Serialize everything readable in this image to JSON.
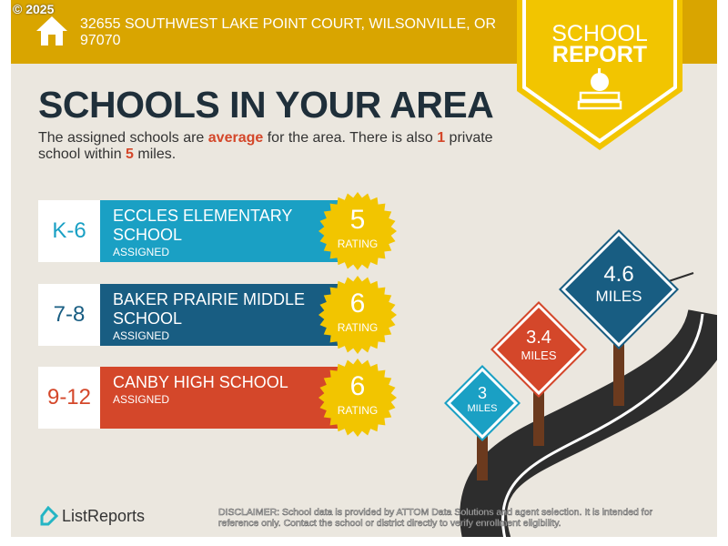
{
  "header": {
    "copyright": "© 2025",
    "address": "32655 SOUTHWEST LAKE POINT COURT, WILSONVILLE, OR 97070"
  },
  "badge": {
    "line1": "SCHOOL",
    "line2": "REPORT",
    "icon": "apple-books-icon"
  },
  "title": "SCHOOLS IN YOUR AREA",
  "summary": {
    "p1": "The assigned schools are ",
    "quality": "average",
    "p2": " for the area. There is also ",
    "count": "1",
    "p3": " private school within ",
    "miles": "5",
    "p4": " miles."
  },
  "schools": [
    {
      "grade": "K-6",
      "name": "ECCLES ELEMENTARY SCHOOL",
      "status": "ASSIGNED",
      "rating": "5",
      "rating_label": "RATING",
      "color": "#1aa0c4",
      "grade_color": "#1aa0c4"
    },
    {
      "grade": "7-8",
      "name": "BAKER PRAIRIE MIDDLE SCHOOL",
      "status": "ASSIGNED",
      "rating": "6",
      "rating_label": "RATING",
      "color": "#185d82",
      "grade_color": "#185d82"
    },
    {
      "grade": "9-12",
      "name": "CANBY HIGH SCHOOL",
      "status": "ASSIGNED",
      "rating": "6",
      "rating_label": "RATING",
      "color": "#d4472a",
      "grade_color": "#d4472a"
    }
  ],
  "signs": [
    {
      "value": "3",
      "unit": "MILES",
      "color": "#1aa0c4"
    },
    {
      "value": "3.4",
      "unit": "MILES",
      "color": "#d4472a"
    },
    {
      "value": "4.6",
      "unit": "MILES",
      "color": "#185d82"
    }
  ],
  "footer": {
    "logo": "ListReports",
    "disclaimer_label": "DISCLAIMER:",
    "disclaimer": " School data is provided by ATTOM Data Solutions and agent selection. It is intended for reference only. Contact the school or district directly to verify enrollment eligibility."
  },
  "colors": {
    "header": "#d9a500",
    "badge": "#f2c500",
    "background": "#ebe7df",
    "rating_star": "#f2c500"
  }
}
